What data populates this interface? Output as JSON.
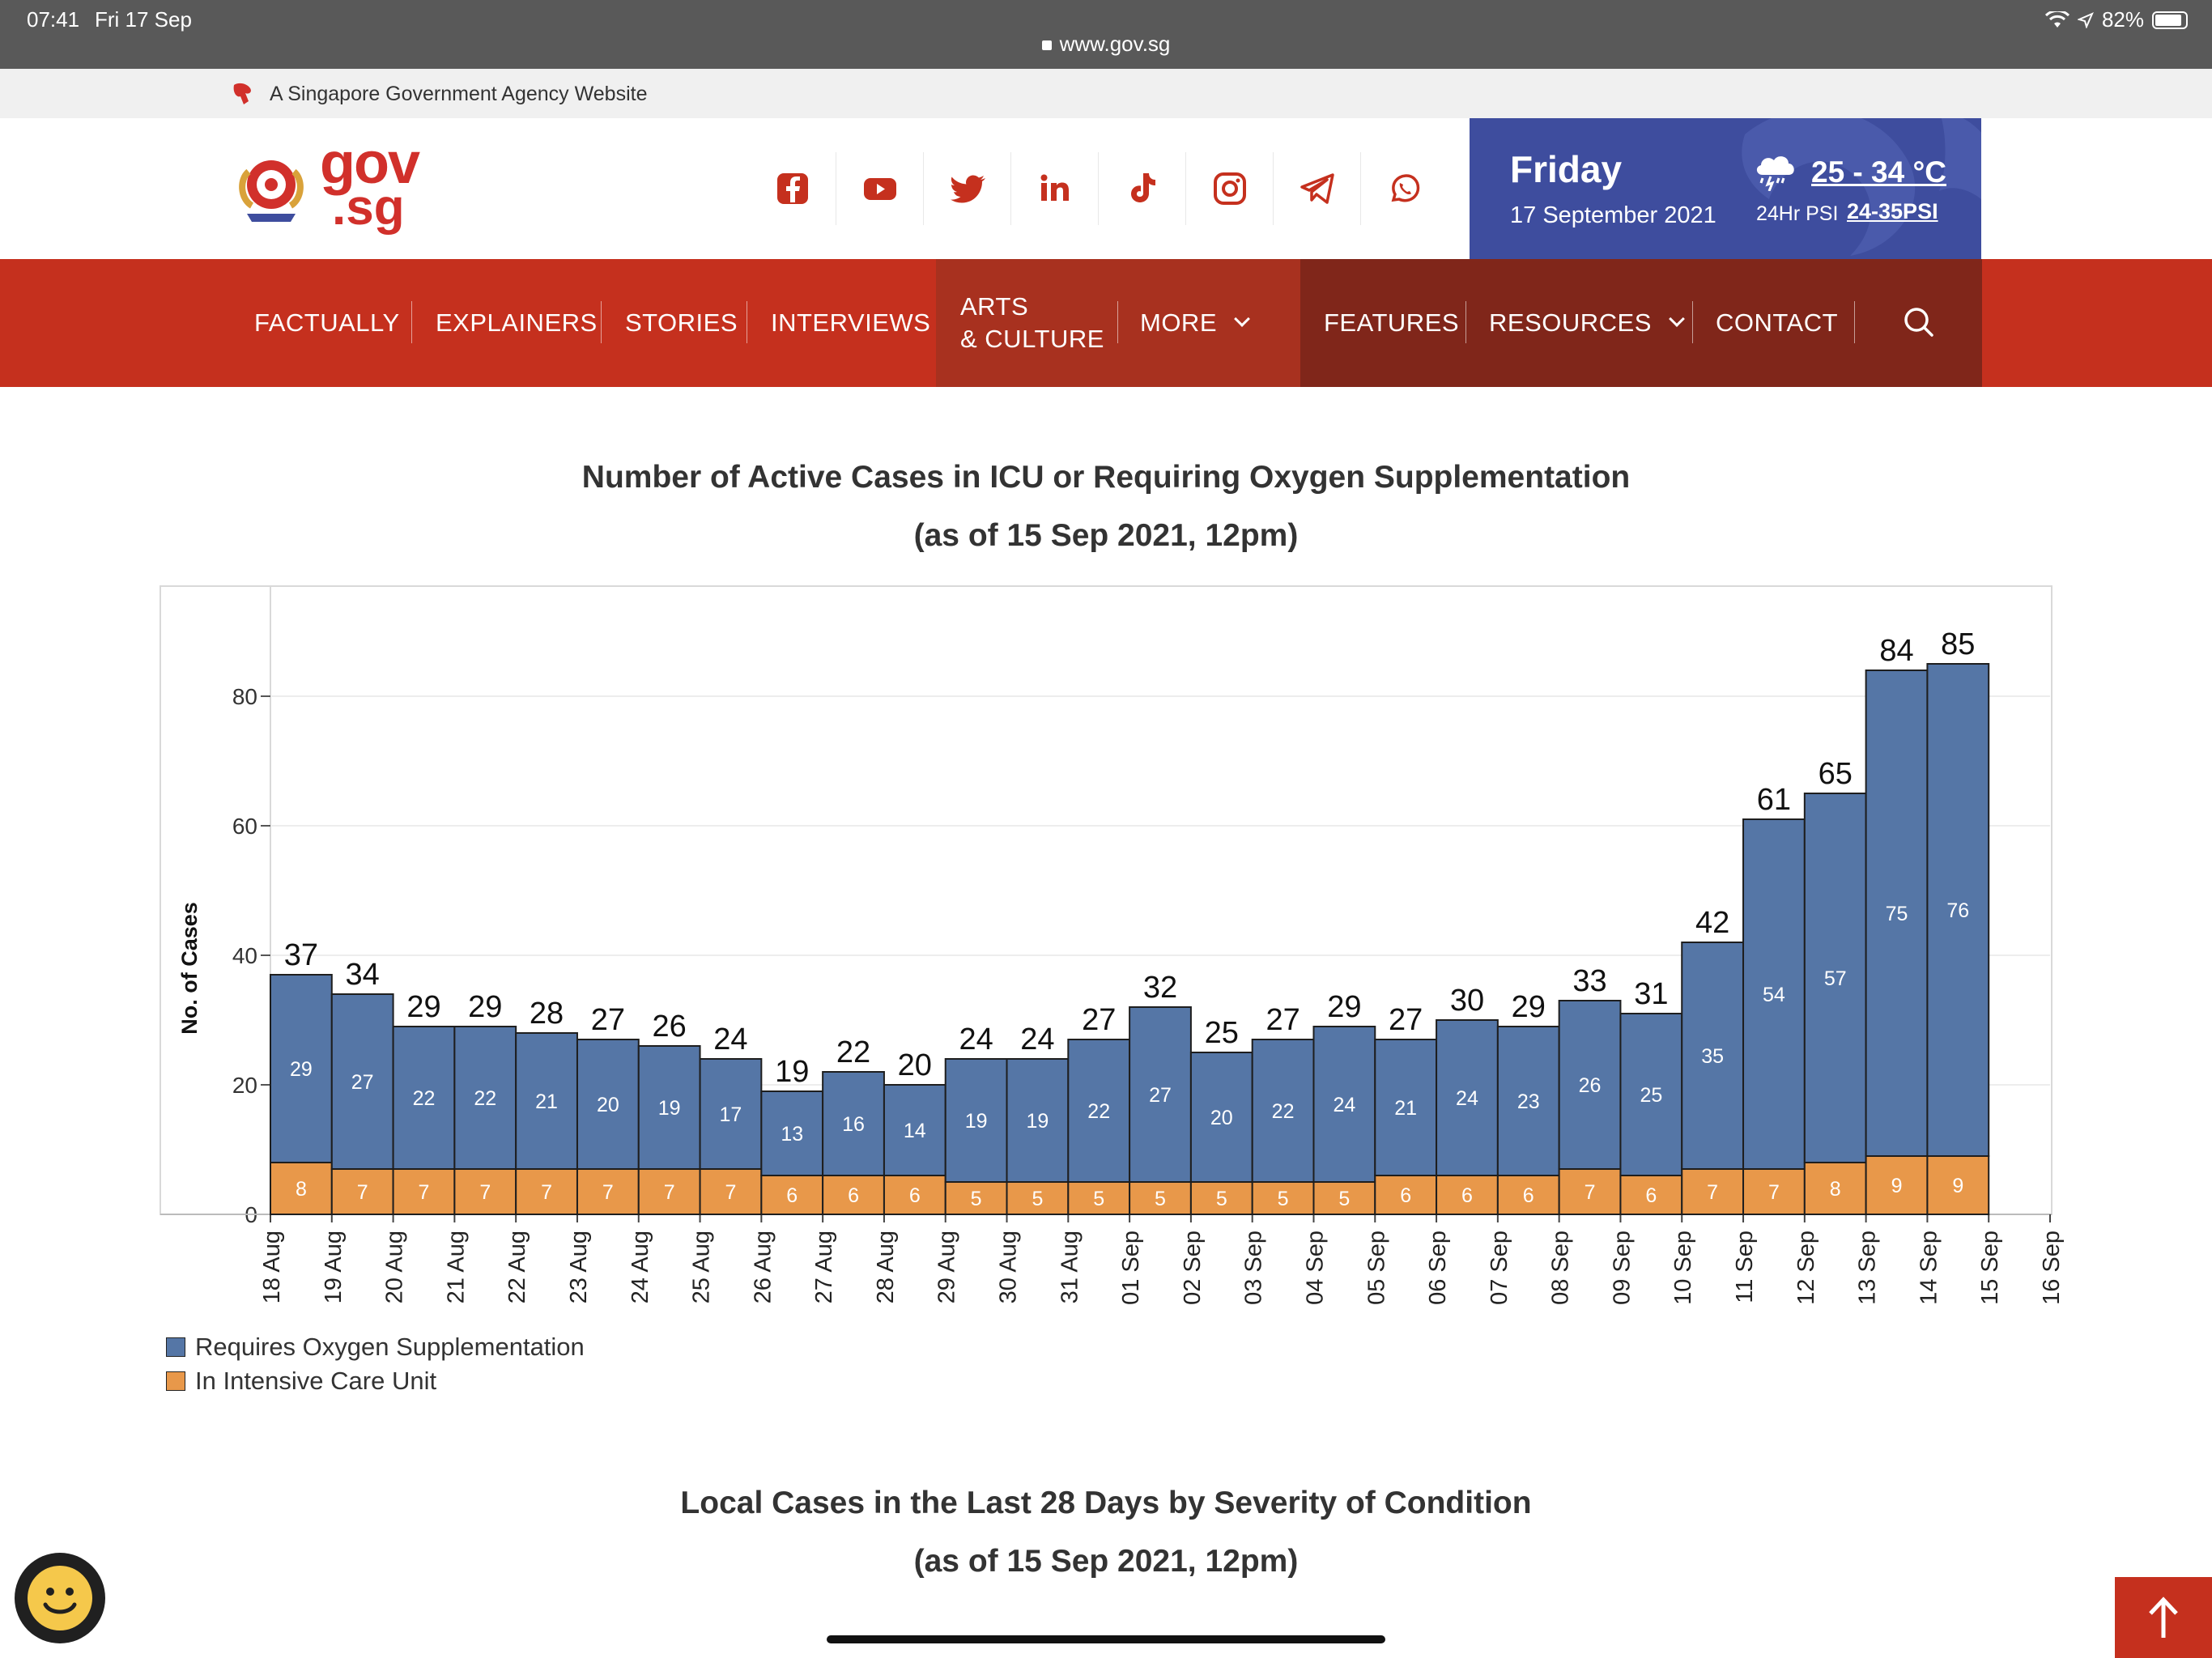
{
  "status_bar": {
    "time": "07:41",
    "date": "Fri 17 Sep",
    "url": "www.gov.sg",
    "battery": "82%"
  },
  "masthead": {
    "text": "A Singapore Government Agency Website"
  },
  "logo": {
    "gov": "gov",
    "sg": ".sg"
  },
  "socials": [
    "facebook-icon",
    "youtube-icon",
    "twitter-icon",
    "linkedin-icon",
    "tiktok-icon",
    "instagram-icon",
    "telegram-icon",
    "whatsapp-icon"
  ],
  "weather": {
    "day": "Friday",
    "date": "17 September 2021",
    "temp": "25 - 34 °C",
    "psi_label": "24Hr PSI",
    "psi_value": "24-35PSI"
  },
  "nav": {
    "items": [
      "FACTUALLY",
      "EXPLAINERS",
      "STORIES",
      "INTERVIEWS",
      "ARTS",
      "& CULTURE",
      "MORE",
      "FEATURES",
      "RESOURCES",
      "CONTACT"
    ]
  },
  "colors": {
    "brand_red": "#c5301e",
    "oxygen": "#5576a6",
    "icu": "#e8984a",
    "weather_bg": "#3e4d9e"
  },
  "chart1": {
    "title": "Number of Active Cases in ICU or Requiring Oxygen Supplementation",
    "subtitle": "(as of 15 Sep 2021, 12pm)"
  },
  "chart2": {
    "title": "Local Cases in the Last 28 Days by Severity of Condition",
    "subtitle": "(as of 15 Sep 2021, 12pm)"
  },
  "chart_data": {
    "type": "bar",
    "stacked": true,
    "ylabel": "No. of Cases",
    "ylim": [
      0,
      95
    ],
    "yticks": [
      0,
      20,
      40,
      60,
      80
    ],
    "grid": true,
    "legend_position": "bottom-left",
    "x_tick_labels": [
      "18 Aug",
      "19 Aug",
      "20 Aug",
      "21 Aug",
      "22 Aug",
      "23 Aug",
      "24 Aug",
      "25 Aug",
      "26 Aug",
      "27 Aug",
      "28 Aug",
      "29 Aug",
      "30 Aug",
      "31 Aug",
      "01 Sep",
      "02 Sep",
      "03 Sep",
      "04 Sep",
      "05 Sep",
      "06 Sep",
      "07 Sep",
      "08 Sep",
      "09 Sep",
      "10 Sep",
      "11 Sep",
      "12 Sep",
      "13 Sep",
      "14 Sep",
      "15 Sep",
      "16 Sep"
    ],
    "categories": [
      "19 Aug",
      "20 Aug",
      "21 Aug",
      "22 Aug",
      "23 Aug",
      "24 Aug",
      "25 Aug",
      "26 Aug",
      "27 Aug",
      "28 Aug",
      "29 Aug",
      "30 Aug",
      "31 Aug",
      "01 Sep",
      "02 Sep",
      "03 Sep",
      "04 Sep",
      "05 Sep",
      "06 Sep",
      "07 Sep",
      "08 Sep",
      "09 Sep",
      "10 Sep",
      "11 Sep",
      "12 Sep",
      "13 Sep",
      "14 Sep",
      "15 Sep"
    ],
    "series": [
      {
        "name": "In Intensive Care Unit",
        "color": "#e8984a",
        "values": [
          8,
          7,
          7,
          7,
          7,
          7,
          7,
          7,
          6,
          6,
          6,
          5,
          5,
          5,
          5,
          5,
          5,
          5,
          6,
          6,
          6,
          7,
          6,
          7,
          7,
          8,
          9,
          9
        ]
      },
      {
        "name": "Requires Oxygen Supplementation",
        "color": "#5576a6",
        "values": [
          29,
          27,
          22,
          22,
          21,
          20,
          19,
          17,
          13,
          16,
          14,
          19,
          19,
          22,
          27,
          20,
          22,
          24,
          21,
          24,
          23,
          26,
          25,
          35,
          54,
          57,
          75,
          76
        ]
      }
    ],
    "totals": [
      37,
      34,
      29,
      29,
      28,
      27,
      26,
      24,
      19,
      22,
      20,
      24,
      24,
      27,
      32,
      25,
      27,
      29,
      27,
      30,
      29,
      33,
      31,
      42,
      61,
      65,
      84,
      85
    ],
    "legend": [
      "Requires Oxygen Supplementation",
      "In Intensive Care Unit"
    ]
  }
}
